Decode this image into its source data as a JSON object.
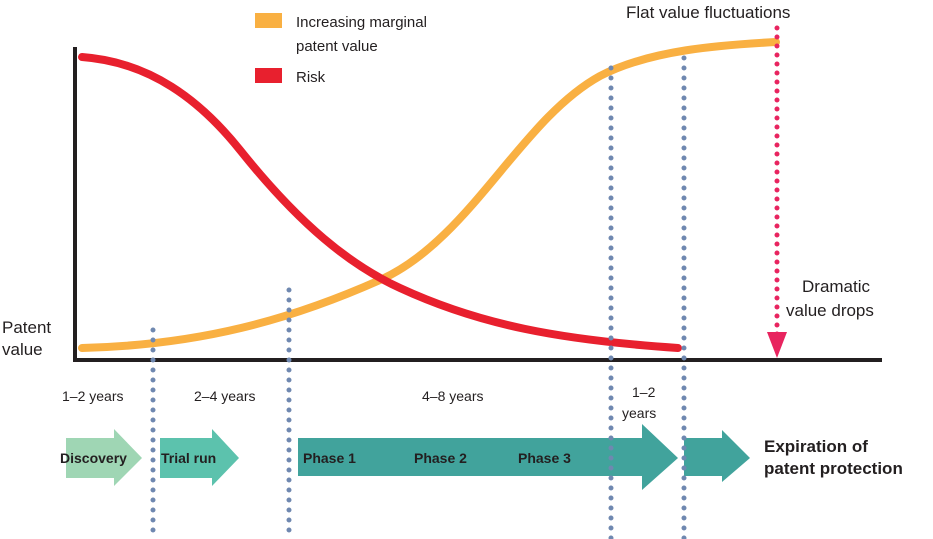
{
  "legend": {
    "items": [
      {
        "line1": "Increasing marginal",
        "line2": "patent value",
        "color": "#f9b042"
      },
      {
        "line1": "Risk",
        "line2": "",
        "color": "#e8202e"
      }
    ]
  },
  "annotations": {
    "flat": "Flat value fluctuations",
    "dramatic_line1": "Dramatic",
    "dramatic_line2": "value drops",
    "y_label_line1": "Patent",
    "y_label_line2": "value"
  },
  "durations": {
    "d1": "1–2 years",
    "d2": "2–4 years",
    "d3": "4–8 years",
    "d4_line1": "1–2",
    "d4_line2": "years"
  },
  "stages": {
    "discovery": "Discovery",
    "trial": "Trial run",
    "phase1": "Phase 1",
    "phase2": "Phase 2",
    "phase3": "Phase 3"
  },
  "expiration": {
    "line1": "Expiration of",
    "line2": "patent protection"
  },
  "colors": {
    "value_curve": "#f9b042",
    "risk_curve": "#e8202e",
    "divider_dots": "#6f88b0",
    "drop_arrow": "#e8245f",
    "discovery_arrow": "#9fd6b4",
    "trial_arrow": "#5cc2ad",
    "phase_arrow": "#41a39c",
    "axis": "#231f20"
  }
}
